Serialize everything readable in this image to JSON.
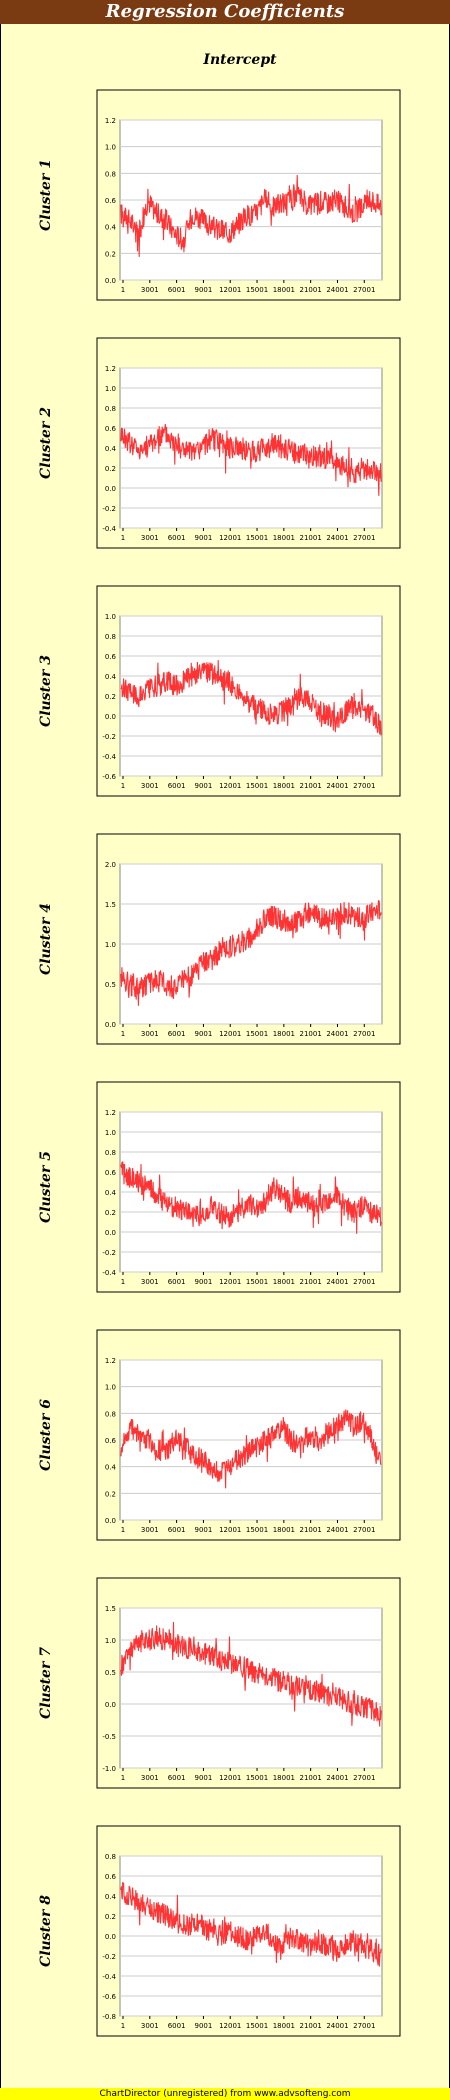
{
  "page": {
    "title": "Regression Coefficients",
    "column_title": "Intercept",
    "footer": "ChartDirector (unregistered) from www.advsofteng.com"
  },
  "colors": {
    "series": "#ff3333",
    "plot_bg": "#ffffff",
    "panel_bg": "#ffffc8",
    "title_bar": "#7a3b12",
    "footer_bg": "#ffff00"
  },
  "chart_data": [
    {
      "type": "line",
      "title": "Cluster 1",
      "x_ticks": [
        "1",
        "3001",
        "6001",
        "9001",
        "12001",
        "15001",
        "18001",
        "21001",
        "24001",
        "27001"
      ],
      "y_ticks": [
        "0.0",
        "0.2",
        "0.4",
        "0.6",
        "0.8",
        "1.0",
        "1.2"
      ],
      "ylim": [
        0,
        1.2
      ],
      "grid": true,
      "series": [
        {
          "values": [
            0.5,
            0.45,
            0.35,
            0.6,
            0.5,
            0.45,
            0.35,
            0.3,
            0.5,
            0.45,
            0.4,
            0.38,
            0.35,
            0.42,
            0.48,
            0.5,
            0.6,
            0.55,
            0.58,
            0.6,
            0.62,
            0.55,
            0.6,
            0.58,
            0.6,
            0.55,
            0.5,
            0.55,
            0.6,
            0.55
          ]
        }
      ]
    },
    {
      "type": "line",
      "title": "Cluster 2",
      "x_ticks": [
        "1",
        "3001",
        "6001",
        "9001",
        "12001",
        "15001",
        "18001",
        "21001",
        "24001",
        "27001"
      ],
      "y_ticks": [
        "-0.4",
        "-0.2",
        "0.0",
        "0.2",
        "0.4",
        "0.6",
        "0.8",
        "1.0",
        "1.2"
      ],
      "ylim": [
        -0.4,
        1.2
      ],
      "grid": true,
      "series": [
        {
          "values": [
            0.55,
            0.45,
            0.4,
            0.42,
            0.5,
            0.55,
            0.45,
            0.4,
            0.35,
            0.4,
            0.5,
            0.45,
            0.4,
            0.42,
            0.38,
            0.35,
            0.4,
            0.45,
            0.4,
            0.38,
            0.35,
            0.3,
            0.32,
            0.3,
            0.25,
            0.2,
            0.15,
            0.2,
            0.18,
            0.15
          ]
        }
      ]
    },
    {
      "type": "line",
      "title": "Cluster 3",
      "x_ticks": [
        "1",
        "3001",
        "6001",
        "9001",
        "12001",
        "15001",
        "18001",
        "21001",
        "24001",
        "27001"
      ],
      "y_ticks": [
        "-0.6",
        "-0.4",
        "-0.2",
        "0.0",
        "0.2",
        "0.4",
        "0.6",
        "0.8",
        "1.0"
      ],
      "ylim": [
        -0.6,
        1.0
      ],
      "grid": true,
      "series": [
        {
          "values": [
            0.3,
            0.25,
            0.2,
            0.25,
            0.3,
            0.35,
            0.3,
            0.35,
            0.4,
            0.45,
            0.42,
            0.38,
            0.35,
            0.25,
            0.15,
            0.1,
            0.05,
            0.0,
            0.05,
            0.1,
            0.2,
            0.15,
            0.05,
            0.0,
            -0.05,
            0.05,
            0.1,
            0.05,
            0.0,
            -0.1
          ]
        }
      ]
    },
    {
      "type": "line",
      "title": "Cluster 4",
      "x_ticks": [
        "1",
        "3001",
        "6001",
        "9001",
        "12001",
        "15001",
        "18001",
        "21001",
        "24001",
        "27001"
      ],
      "y_ticks": [
        "0.0",
        "0.5",
        "1.0",
        "1.5",
        "2.0"
      ],
      "ylim": [
        0,
        2.0
      ],
      "grid": true,
      "series": [
        {
          "values": [
            0.6,
            0.5,
            0.45,
            0.5,
            0.55,
            0.5,
            0.45,
            0.55,
            0.6,
            0.75,
            0.8,
            0.9,
            0.95,
            1.0,
            1.05,
            1.15,
            1.3,
            1.35,
            1.3,
            1.25,
            1.3,
            1.4,
            1.35,
            1.3,
            1.35,
            1.4,
            1.35,
            1.3,
            1.4,
            1.45
          ]
        }
      ]
    },
    {
      "type": "line",
      "title": "Cluster 5",
      "x_ticks": [
        "1",
        "3001",
        "6001",
        "9001",
        "12001",
        "15001",
        "18001",
        "21001",
        "24001",
        "27001"
      ],
      "y_ticks": [
        "-0.4",
        "-0.2",
        "0.0",
        "0.2",
        "0.4",
        "0.6",
        "0.8",
        "1.0",
        "1.2"
      ],
      "ylim": [
        -0.4,
        1.2
      ],
      "grid": true,
      "series": [
        {
          "values": [
            0.6,
            0.55,
            0.5,
            0.45,
            0.35,
            0.3,
            0.25,
            0.2,
            0.15,
            0.2,
            0.25,
            0.2,
            0.15,
            0.2,
            0.3,
            0.25,
            0.3,
            0.45,
            0.35,
            0.3,
            0.35,
            0.3,
            0.25,
            0.3,
            0.35,
            0.25,
            0.2,
            0.25,
            0.2,
            0.15
          ]
        }
      ]
    },
    {
      "type": "line",
      "title": "Cluster 6",
      "x_ticks": [
        "1",
        "3001",
        "6001",
        "9001",
        "12001",
        "15001",
        "18001",
        "21001",
        "24001",
        "27001"
      ],
      "y_ticks": [
        "0.0",
        "0.2",
        "0.4",
        "0.6",
        "0.8",
        "1.0",
        "1.2"
      ],
      "ylim": [
        0,
        1.2
      ],
      "grid": true,
      "series": [
        {
          "values": [
            0.55,
            0.7,
            0.65,
            0.6,
            0.55,
            0.5,
            0.6,
            0.55,
            0.5,
            0.45,
            0.4,
            0.35,
            0.4,
            0.45,
            0.5,
            0.55,
            0.6,
            0.65,
            0.7,
            0.6,
            0.55,
            0.65,
            0.6,
            0.65,
            0.7,
            0.75,
            0.7,
            0.75,
            0.6,
            0.4
          ]
        }
      ]
    },
    {
      "type": "line",
      "title": "Cluster 7",
      "x_ticks": [
        "1",
        "3001",
        "6001",
        "9001",
        "12001",
        "15001",
        "18001",
        "21001",
        "24001",
        "27001"
      ],
      "y_ticks": [
        "-1.0",
        "-0.5",
        "0.0",
        "0.5",
        "1.0",
        "1.5"
      ],
      "ylim": [
        -1.0,
        1.5
      ],
      "grid": true,
      "series": [
        {
          "values": [
            0.6,
            0.8,
            0.95,
            1.0,
            1.05,
            1.0,
            0.95,
            0.9,
            0.85,
            0.8,
            0.75,
            0.7,
            0.65,
            0.6,
            0.55,
            0.5,
            0.45,
            0.4,
            0.35,
            0.3,
            0.3,
            0.25,
            0.2,
            0.15,
            0.1,
            0.05,
            0.0,
            -0.05,
            -0.1,
            -0.2
          ]
        }
      ]
    },
    {
      "type": "line",
      "title": "Cluster 8",
      "x_ticks": [
        "1",
        "3001",
        "6001",
        "9001",
        "12001",
        "15001",
        "18001",
        "21001",
        "24001",
        "27001"
      ],
      "y_ticks": [
        "-0.8",
        "-0.6",
        "-0.4",
        "-0.2",
        "0.0",
        "0.2",
        "0.4",
        "0.6",
        "0.8"
      ],
      "ylim": [
        -0.8,
        0.8
      ],
      "grid": true,
      "series": [
        {
          "values": [
            0.45,
            0.4,
            0.35,
            0.3,
            0.25,
            0.2,
            0.15,
            0.1,
            0.12,
            0.1,
            0.05,
            0.0,
            0.05,
            0.0,
            -0.05,
            0.0,
            0.05,
            -0.05,
            -0.1,
            0.0,
            -0.05,
            -0.1,
            -0.05,
            -0.1,
            -0.15,
            -0.1,
            -0.05,
            -0.1,
            -0.15,
            -0.2
          ]
        }
      ]
    }
  ]
}
